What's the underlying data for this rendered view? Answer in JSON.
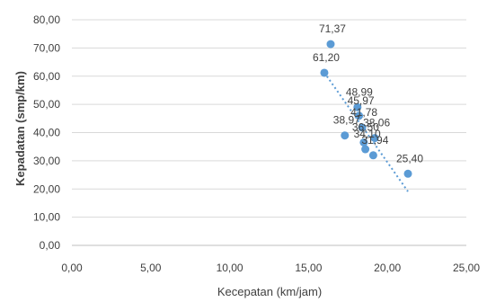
{
  "chart_data": {
    "type": "scatter",
    "title": "",
    "xlabel": "Kecepatan (km/jam)",
    "ylabel": "Kepadatan (smp/km)",
    "xlim": [
      0,
      25
    ],
    "ylim": [
      0,
      80
    ],
    "x_ticks": [
      "0,00",
      "5,00",
      "10,00",
      "15,00",
      "20,00",
      "25,00"
    ],
    "y_ticks": [
      "0,00",
      "10,00",
      "20,00",
      "30,00",
      "40,00",
      "50,00",
      "60,00",
      "70,00",
      "80,00"
    ],
    "grid": "horizontal",
    "point_color": "#5b9bd5",
    "points": [
      {
        "x": 16.4,
        "y": 71.37,
        "label": "71,37"
      },
      {
        "x": 16.0,
        "y": 61.2,
        "label": "61,20"
      },
      {
        "x": 18.1,
        "y": 48.99,
        "label": "48,99"
      },
      {
        "x": 18.2,
        "y": 45.97,
        "label": "45,97"
      },
      {
        "x": 18.4,
        "y": 41.78,
        "label": "41,78"
      },
      {
        "x": 17.3,
        "y": 38.97,
        "label": "38,97"
      },
      {
        "x": 19.2,
        "y": 38.06,
        "label": "38,06"
      },
      {
        "x": 18.5,
        "y": 36.5,
        "label": "36,50"
      },
      {
        "x": 18.6,
        "y": 34.1,
        "label": "34,10"
      },
      {
        "x": 19.1,
        "y": 31.94,
        "label": "31,94"
      },
      {
        "x": 21.3,
        "y": 25.4,
        "label": "25,40"
      }
    ],
    "trendline": {
      "type": "linear",
      "x_range": [
        16.0,
        21.3
      ],
      "color": "#5b9bd5"
    }
  }
}
